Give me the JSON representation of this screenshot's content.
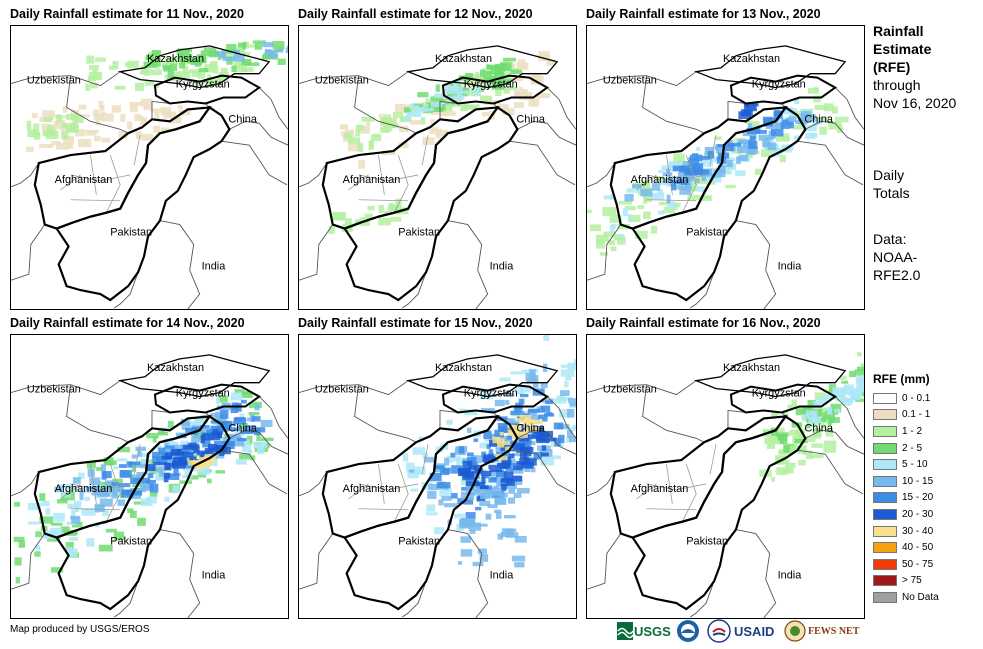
{
  "panels": [
    {
      "title": "Daily Rainfall estimate for 11 Nov., 2020",
      "day": 11
    },
    {
      "title": "Daily Rainfall estimate for 12 Nov., 2020",
      "day": 12
    },
    {
      "title": "Daily Rainfall estimate for 13 Nov., 2020",
      "day": 13
    },
    {
      "title": "Daily Rainfall estimate for 14 Nov., 2020",
      "day": 14
    },
    {
      "title": "Daily Rainfall estimate for 15 Nov., 2020",
      "day": 15
    },
    {
      "title": "Daily Rainfall estimate for 16 Nov., 2020",
      "day": 16
    }
  ],
  "countries": [
    "Kazakhstan",
    "Uzbekistan",
    "Kyrgyzstan",
    "China",
    "Afghanistan",
    "Pakistan",
    "India"
  ],
  "side": {
    "title_line1": "Rainfall",
    "title_line2": "Estimate",
    "title_line3": "(RFE)",
    "through": "through",
    "date": "Nov 16, 2020",
    "daily1": "Daily",
    "daily2": "Totals",
    "data_label": "Data:",
    "data_line2": "NOAA-",
    "data_line3": "RFE2.0"
  },
  "legend": {
    "title": "RFE (mm)",
    "items": [
      {
        "label": "0 - 0.1",
        "color": "#ffffff"
      },
      {
        "label": "0.1 - 1",
        "color": "#ecdfc0"
      },
      {
        "label": "1 - 2",
        "color": "#b4f0a0"
      },
      {
        "label": "2 - 5",
        "color": "#6edc6e"
      },
      {
        "label": "5 - 10",
        "color": "#aee8f8"
      },
      {
        "label": "10 - 15",
        "color": "#78b8ec"
      },
      {
        "label": "15 - 20",
        "color": "#3c8ce6"
      },
      {
        "label": "20 - 30",
        "color": "#1a5ad2"
      },
      {
        "label": "30 - 40",
        "color": "#f8e08c"
      },
      {
        "label": "40 - 50",
        "color": "#f8a010"
      },
      {
        "label": "50 - 75",
        "color": "#f03c0a"
      },
      {
        "label": "> 75",
        "color": "#a01818"
      },
      {
        "label": "No Data",
        "color": "#a0a0a0"
      }
    ]
  },
  "credit": "Map produced by USGS/EROS",
  "logos": [
    "USGS",
    "USAID",
    "FEWS NET"
  ]
}
